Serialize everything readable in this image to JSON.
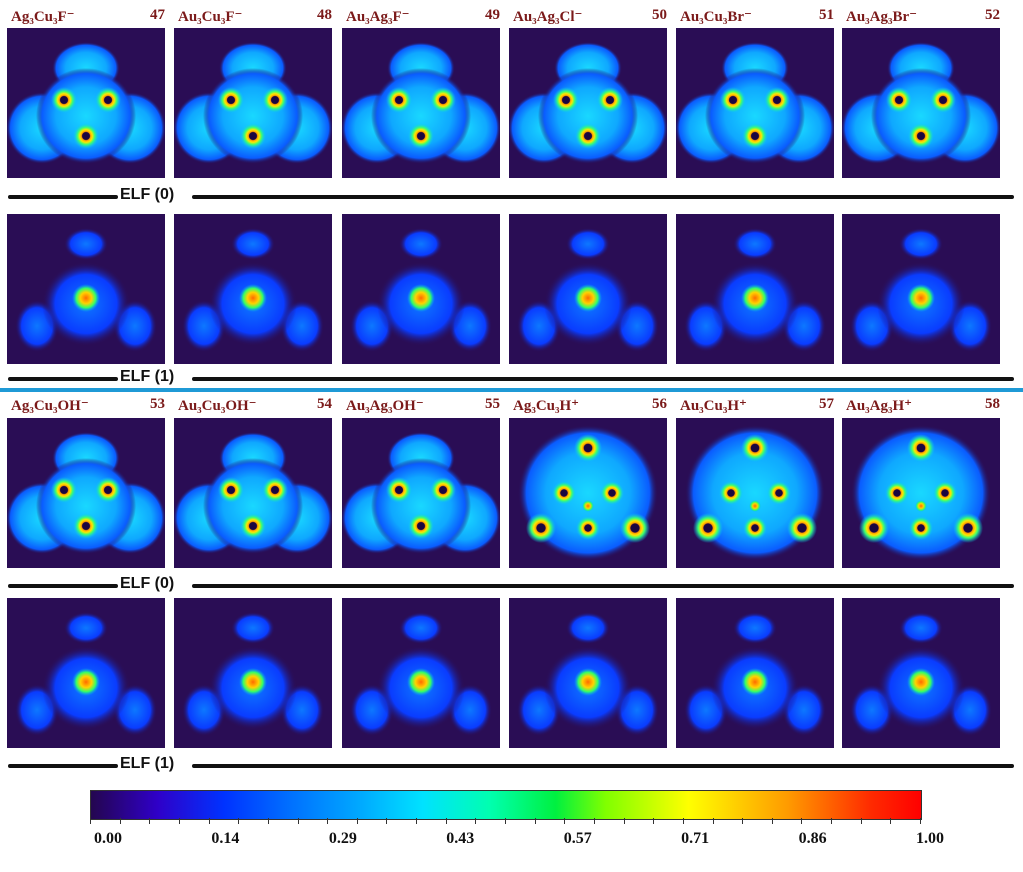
{
  "rows": [
    {
      "labels": [
        {
          "name": "Ag₃Cu₃F⁻",
          "id": "47"
        },
        {
          "name": "Au₃Cu₃F⁻",
          "id": "48"
        },
        {
          "name": "Au₃Ag₃F⁻",
          "id": "49"
        },
        {
          "name": "Au₃Ag₃Cl⁻",
          "id": "50"
        },
        {
          "name": "Au₃Cu₃Br⁻",
          "id": "51"
        },
        {
          "name": "Au₃Ag₃Br⁻",
          "id": "52"
        }
      ]
    },
    {
      "labels": [
        {
          "name": "Ag₃Cu₃OH⁻",
          "id": "53"
        },
        {
          "name": "Au₃Cu₃OH⁻",
          "id": "54"
        },
        {
          "name": "Au₃Ag₃OH⁻",
          "id": "55"
        },
        {
          "name": "Ag₃Cu₃H⁺",
          "id": "56"
        },
        {
          "name": "Au₃Cu₃H⁺",
          "id": "57"
        },
        {
          "name": "Au₃Ag₃H⁺",
          "id": "58"
        }
      ]
    }
  ],
  "elf_labels": {
    "top_0": "ELF (0)",
    "top_1": "ELF (1)",
    "bottom_0": "ELF (0)",
    "bottom_1": "ELF (1)"
  },
  "colorbar": {
    "ticks": [
      "0.00",
      "0.14",
      "0.29",
      "0.43",
      "0.57",
      "0.71",
      "0.86",
      "1.00"
    ],
    "min": 0,
    "max": 1
  },
  "colors": {
    "background": "#2a0d55",
    "label": "#7b1a1a",
    "divider": "#1f9ad6"
  }
}
